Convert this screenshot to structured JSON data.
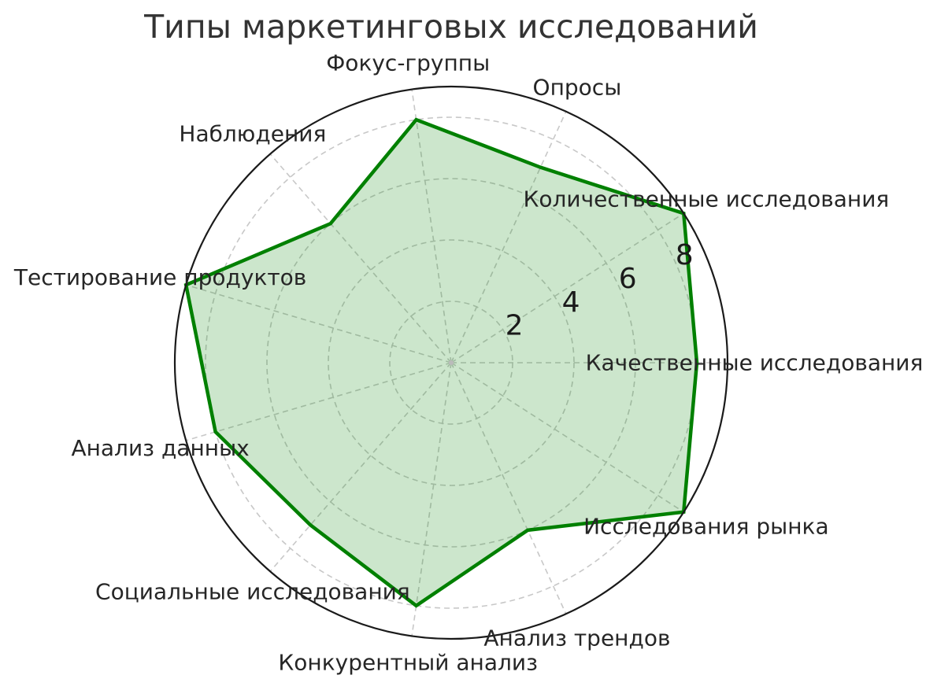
{
  "title": "Типы маркетинговых исследований",
  "colors": {
    "line": "#008000",
    "fill": "rgba(0,128,0,0.20)",
    "grid": "#c8c8c8",
    "outer_circle": "#1a1a1a",
    "label_text": "#262626",
    "tick_text": "#1a1a1a",
    "title_text": "#333333",
    "center_dot": "#bbbbbb"
  },
  "chart_data": {
    "type": "radar",
    "title": "Типы маркетинговых исследований",
    "categories": [
      "Качественные исследования",
      "Количественные исследования",
      "Опросы",
      "Фокус-группы",
      "Наблюдения",
      "Тестирование продуктов",
      "Анализ данных",
      "Социальные исследования",
      "Конкурентный анализ",
      "Анализ трендов",
      "Исследования рынка"
    ],
    "values": [
      8,
      9,
      7,
      8,
      6,
      9,
      8,
      7,
      8,
      6,
      9
    ],
    "radial_ticks": [
      2,
      4,
      6,
      8
    ],
    "tick_labels": [
      "2",
      "4",
      "6",
      "8"
    ],
    "r_min": 0,
    "r_max": 9,
    "start_angle_deg": 0,
    "direction": "counterclockwise",
    "grid": "dashed",
    "legend": "none"
  }
}
